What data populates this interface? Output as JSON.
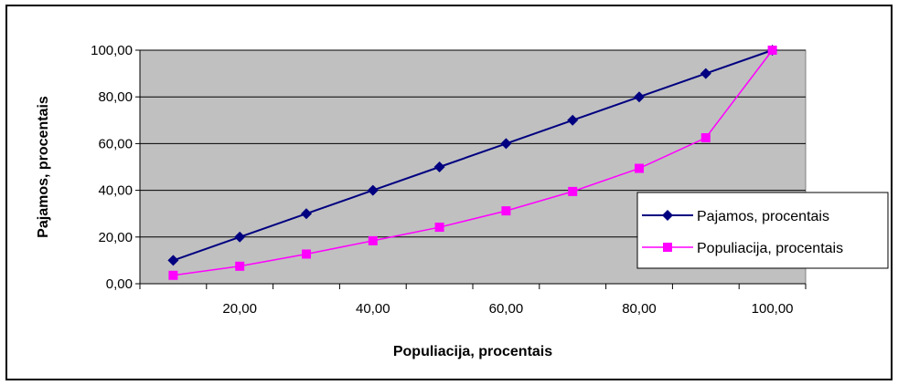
{
  "chart_data": {
    "type": "line",
    "title": "",
    "xlabel": "Populiacija, procentais",
    "ylabel": "Pajamos, procentais",
    "categories": [
      "10",
      "20,00",
      "30",
      "40,00",
      "50",
      "60,00",
      "70",
      "80,00",
      "90",
      "100,00"
    ],
    "x_tick_labels": [
      "",
      "20,00",
      "",
      "40,00",
      "",
      "60,00",
      "",
      "80,00",
      "",
      "100,00"
    ],
    "y_tick_labels": [
      "0,00",
      "20,00",
      "40,00",
      "60,00",
      "80,00",
      "100,00"
    ],
    "ylim": [
      0,
      100
    ],
    "grid": true,
    "legend_position": "right",
    "series": [
      {
        "name": "Pajamos, procentais",
        "color": "#000080",
        "marker": "diamond",
        "values": [
          10,
          20,
          30,
          40,
          50,
          60,
          70,
          80,
          90,
          100
        ]
      },
      {
        "name": "Populiacija, procentais",
        "color": "#FF00FF",
        "marker": "square",
        "values": [
          3.6,
          7.5,
          12.7,
          18.4,
          24.2,
          31.2,
          39.5,
          49.4,
          62.5,
          100
        ]
      }
    ],
    "plot_background": "#C0C0C0"
  }
}
